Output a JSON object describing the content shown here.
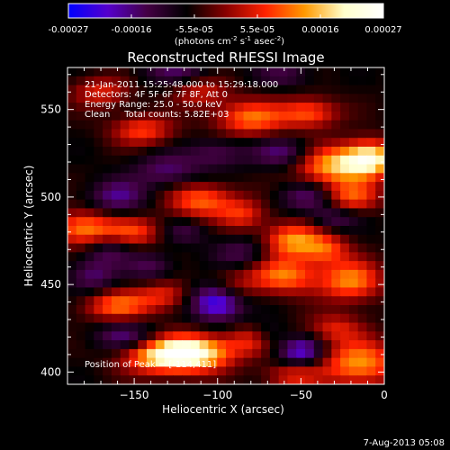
{
  "colorbar": {
    "tick_labels": [
      "-0.00027",
      "-0.00016",
      "-5.5e-05",
      "5.5e-05",
      "0.00016",
      "0.00027"
    ],
    "unit_main": "(photons cm",
    "unit_sup1": "-2",
    "unit_mid1": " s",
    "unit_sup2": "-1",
    "unit_mid2": " asec",
    "unit_sup3": "-2",
    "unit_end": ")",
    "colormap_stops": [
      "#0000ff",
      "#5500cc",
      "#440044",
      "#000000",
      "#880000",
      "#ff2200",
      "#ff9900",
      "#ffffcc",
      "#ffffff"
    ]
  },
  "chart_data": {
    "type": "heatmap",
    "title": "Reconstructed RHESSI Image",
    "xlabel": "Heliocentric X (arcsec)",
    "ylabel": "Heliocentric Y (arcsec)",
    "xlim": [
      -190,
      0
    ],
    "ylim": [
      393,
      574
    ],
    "x_ticks": [
      -150,
      -100,
      -50,
      0
    ],
    "x_tick_labels": [
      "−150",
      "−100",
      "−50",
      "0"
    ],
    "y_ticks": [
      400,
      450,
      500,
      550
    ],
    "y_tick_labels": [
      "400",
      "450",
      "500",
      "550"
    ],
    "value_range": [
      -0.00027,
      0.00027
    ],
    "blobs": [
      {
        "x": -114,
        "y": 411,
        "v": 1.0,
        "sx": 16,
        "sy": 7
      },
      {
        "x": -135,
        "y": 409,
        "v": 0.72,
        "sx": 16,
        "sy": 7
      },
      {
        "x": -75,
        "y": 418,
        "v": 0.55,
        "sx": 12,
        "sy": 6
      },
      {
        "x": -15,
        "y": 405,
        "v": 0.72,
        "sx": 16,
        "sy": 9
      },
      {
        "x": -55,
        "y": 398,
        "v": 0.42,
        "sx": 12,
        "sy": 5
      },
      {
        "x": -30,
        "y": 425,
        "v": 0.38,
        "sx": 12,
        "sy": 6
      },
      {
        "x": -160,
        "y": 438,
        "v": 0.6,
        "sx": 14,
        "sy": 6
      },
      {
        "x": -132,
        "y": 444,
        "v": 0.42,
        "sx": 11,
        "sy": 6
      },
      {
        "x": -95,
        "y": 448,
        "v": 0.55,
        "sx": 12,
        "sy": 7
      },
      {
        "x": -60,
        "y": 455,
        "v": 0.65,
        "sx": 14,
        "sy": 7
      },
      {
        "x": -20,
        "y": 452,
        "v": 0.68,
        "sx": 13,
        "sy": 8
      },
      {
        "x": -180,
        "y": 482,
        "v": 0.68,
        "sx": 13,
        "sy": 7
      },
      {
        "x": -150,
        "y": 480,
        "v": 0.48,
        "sx": 12,
        "sy": 6
      },
      {
        "x": -110,
        "y": 498,
        "v": 0.6,
        "sx": 14,
        "sy": 7
      },
      {
        "x": -85,
        "y": 490,
        "v": 0.42,
        "sx": 10,
        "sy": 6
      },
      {
        "x": -55,
        "y": 475,
        "v": 0.7,
        "sx": 12,
        "sy": 7
      },
      {
        "x": -35,
        "y": 470,
        "v": 0.48,
        "sx": 10,
        "sy": 6
      },
      {
        "x": -20,
        "y": 500,
        "v": 0.55,
        "sx": 12,
        "sy": 6
      },
      {
        "x": -30,
        "y": 518,
        "v": 0.78,
        "sx": 16,
        "sy": 8
      },
      {
        "x": -8,
        "y": 522,
        "v": 0.9,
        "sx": 11,
        "sy": 7
      },
      {
        "x": -80,
        "y": 545,
        "v": 0.62,
        "sx": 15,
        "sy": 7
      },
      {
        "x": -45,
        "y": 548,
        "v": 0.55,
        "sx": 12,
        "sy": 6
      },
      {
        "x": -145,
        "y": 538,
        "v": 0.5,
        "sx": 13,
        "sy": 6
      },
      {
        "x": -170,
        "y": 560,
        "v": 0.4,
        "sx": 12,
        "sy": 6
      },
      {
        "x": -110,
        "y": 560,
        "v": 0.36,
        "sx": 12,
        "sy": 6
      },
      {
        "x": -100,
        "y": 442,
        "v": -0.95,
        "sx": 11,
        "sy": 8
      },
      {
        "x": -70,
        "y": 420,
        "v": -0.45,
        "sx": 8,
        "sy": 6
      },
      {
        "x": -50,
        "y": 412,
        "v": -0.6,
        "sx": 10,
        "sy": 6
      },
      {
        "x": -155,
        "y": 420,
        "v": -0.4,
        "sx": 13,
        "sy": 6
      },
      {
        "x": -175,
        "y": 455,
        "v": -0.35,
        "sx": 10,
        "sy": 7
      },
      {
        "x": -160,
        "y": 500,
        "v": -0.4,
        "sx": 12,
        "sy": 7
      },
      {
        "x": -130,
        "y": 515,
        "v": -0.35,
        "sx": 14,
        "sy": 7
      },
      {
        "x": -60,
        "y": 525,
        "v": -0.4,
        "sx": 13,
        "sy": 6
      },
      {
        "x": -45,
        "y": 500,
        "v": -0.38,
        "sx": 12,
        "sy": 6
      },
      {
        "x": -100,
        "y": 525,
        "v": -0.3,
        "sx": 12,
        "sy": 6
      },
      {
        "x": -125,
        "y": 572,
        "v": -0.3,
        "sx": 14,
        "sy": 6
      },
      {
        "x": -165,
        "y": 470,
        "v": -0.3,
        "sx": 10,
        "sy": 6
      },
      {
        "x": -30,
        "y": 488,
        "v": -0.3,
        "sx": 10,
        "sy": 5
      },
      {
        "x": -85,
        "y": 468,
        "v": -0.3,
        "sx": 12,
        "sy": 6
      },
      {
        "x": -140,
        "y": 460,
        "v": -0.3,
        "sx": 10,
        "sy": 6
      },
      {
        "x": -60,
        "y": 570,
        "v": -0.25,
        "sx": 12,
        "sy": 5
      },
      {
        "x": -120,
        "y": 480,
        "v": -0.25,
        "sx": 10,
        "sy": 5
      }
    ],
    "info_lines": [
      "21-Jan-2011 15:25:48.000 to 15:29:18.000",
      "Detectors: 4F 5F 6F 7F 8F, Att 0",
      "Energy Range: 25.0 - 50.0 keV",
      "Clean     Total counts: 5.82E+03"
    ],
    "peak_label": "Position of Peak = [-114,411]"
  },
  "footer_timestamp": "7-Aug-2013 05:08"
}
